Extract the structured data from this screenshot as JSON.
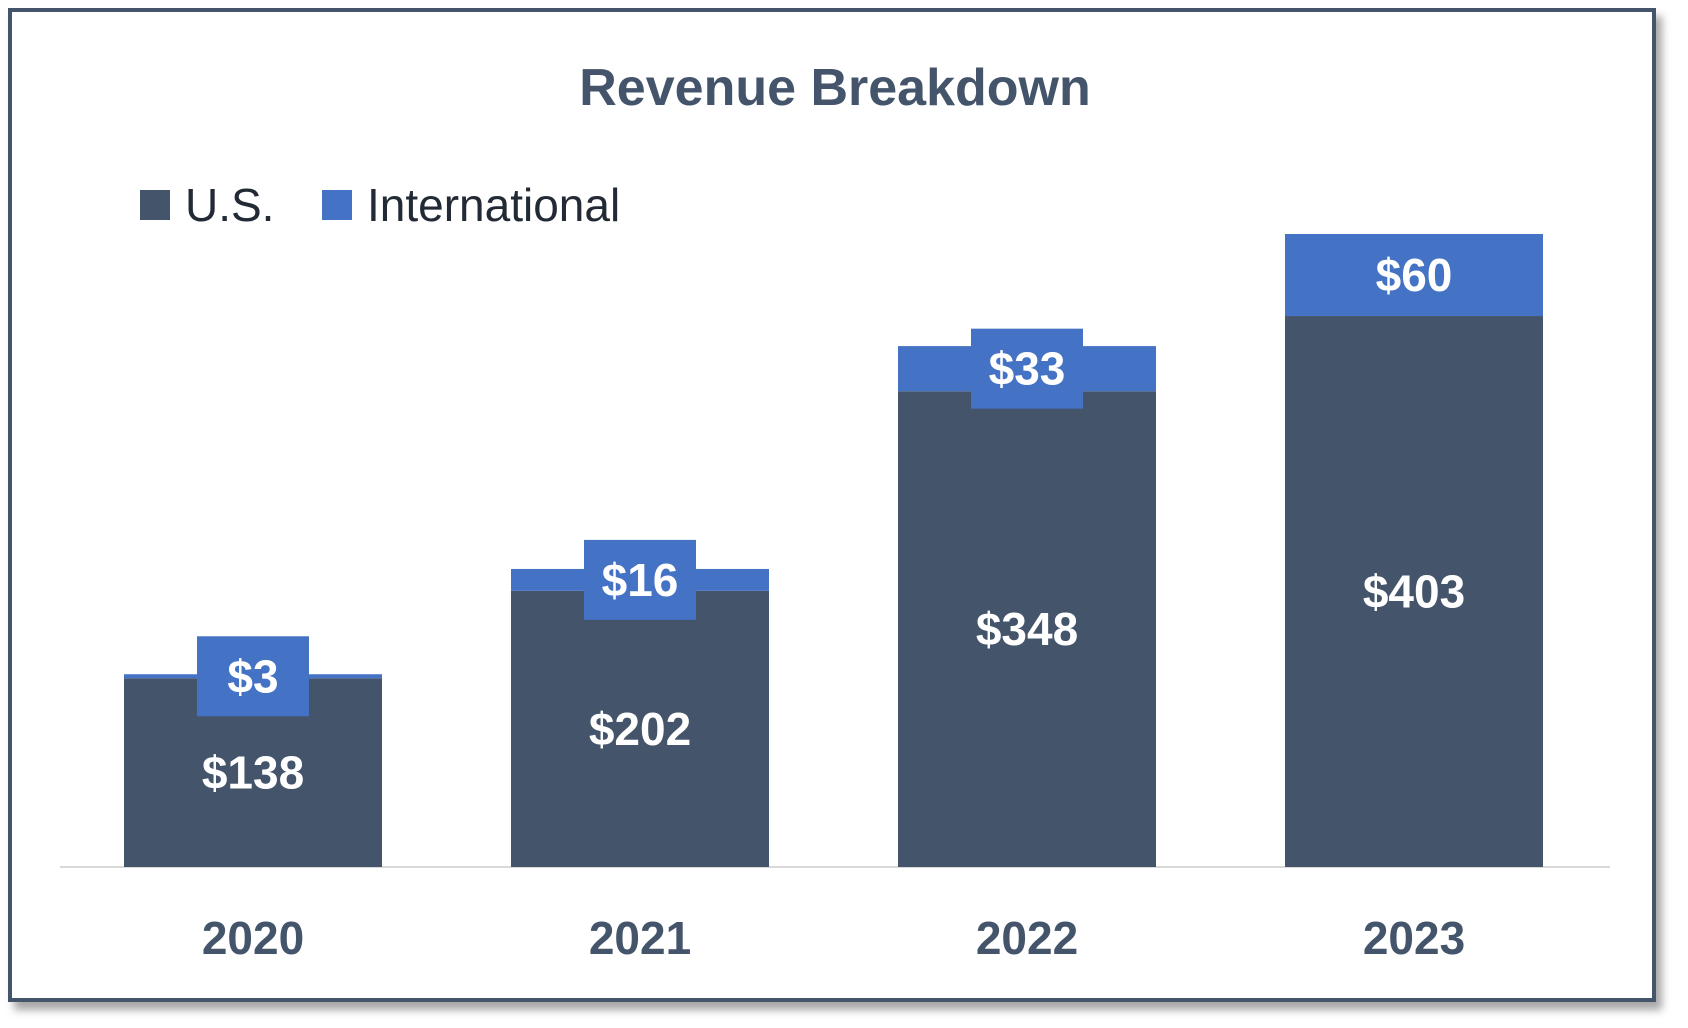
{
  "chart_data": {
    "type": "bar",
    "stacked": true,
    "title": "Revenue Breakdown",
    "categories": [
      "2020",
      "2021",
      "2022",
      "2023"
    ],
    "series": [
      {
        "name": "U.S.",
        "values": [
          138,
          202,
          348,
          403
        ],
        "labels": [
          "$138",
          "$202",
          "$348",
          "$403"
        ],
        "color": "#44546a"
      },
      {
        "name": "International",
        "values": [
          3,
          16,
          33,
          60
        ],
        "labels": [
          "$3",
          "$16",
          "$33",
          "$60"
        ],
        "color": "#4472c4"
      }
    ],
    "ylim": [
      0,
      480
    ],
    "grid": false,
    "legend_position": "top-left"
  }
}
